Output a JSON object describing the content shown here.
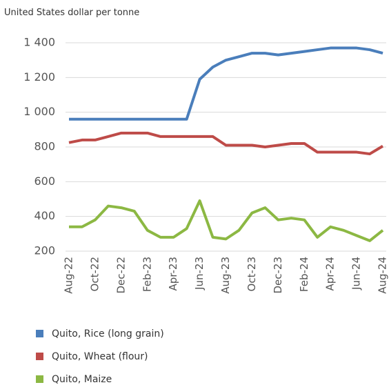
{
  "chart_data": {
    "type": "line",
    "title": "United States dollar per tonne",
    "categories": [
      "Aug-22",
      null,
      "Oct-22",
      null,
      "Dec-22",
      null,
      "Feb-23",
      null,
      "Apr-23",
      null,
      "Jun-23",
      null,
      "Aug-23",
      null,
      "Oct-23",
      null,
      "Dec-23",
      null,
      "Feb-24",
      null,
      "Apr-24",
      null,
      "Jun-24",
      null,
      "Aug-24"
    ],
    "series": [
      {
        "name": "Quito, Rice (long grain)",
        "color": "#4a7ebb",
        "values": [
          960,
          960,
          960,
          960,
          960,
          960,
          960,
          960,
          960,
          960,
          1190,
          1260,
          1300,
          1320,
          1340,
          1340,
          1330,
          1340,
          1350,
          1360,
          1370,
          1370,
          1370,
          1360,
          1340
        ]
      },
      {
        "name": "Quito, Wheat (flour)",
        "color": "#be4b48",
        "values": [
          825,
          840,
          840,
          860,
          880,
          880,
          880,
          860,
          860,
          860,
          860,
          860,
          810,
          810,
          810,
          800,
          810,
          820,
          820,
          770,
          770,
          770,
          770,
          760,
          805
        ]
      },
      {
        "name": "Quito, Maize",
        "color": "#8cb843",
        "values": [
          340,
          340,
          380,
          460,
          450,
          430,
          320,
          280,
          280,
          330,
          490,
          280,
          270,
          320,
          420,
          450,
          380,
          390,
          380,
          280,
          340,
          320,
          290,
          260,
          320
        ]
      }
    ],
    "ylim": [
      200,
      1400
    ],
    "yticks": [
      200,
      400,
      600,
      800,
      {
        "value": 1000,
        "label": "1 000"
      },
      {
        "value": 1200,
        "label": "1 200"
      },
      {
        "value": 1400,
        "label": "1 400"
      }
    ],
    "grid": true
  }
}
